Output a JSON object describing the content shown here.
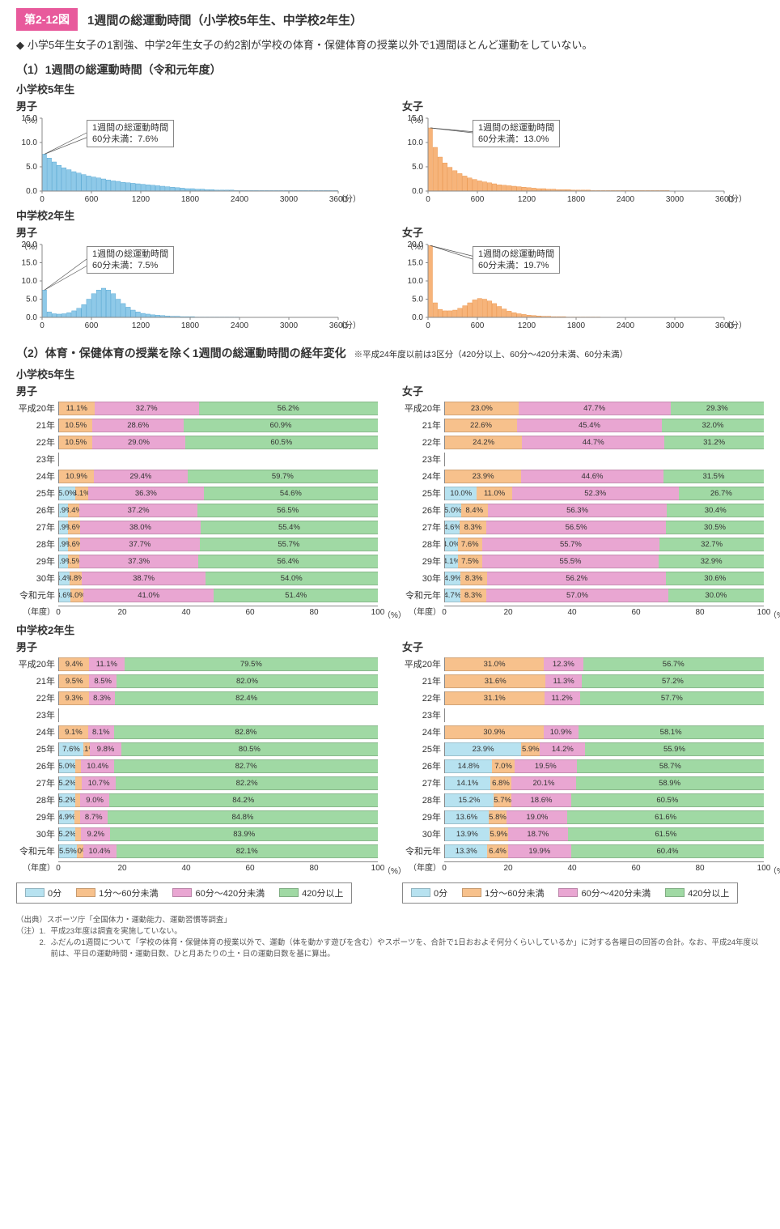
{
  "header": {
    "tag": "第2-12図",
    "title": "1週間の総運動時間（小学校5年生、中学校2年生）"
  },
  "bullet": "小学5年生女子の1割強、中学2年生女子の約2割が学校の体育・保健体育の授業以外で1週間ほとんど運動をしていない。",
  "colors": {
    "boys_bar": "#8ec9e8",
    "boys_bar_stroke": "#4aa0cf",
    "girls_bar": "#f7b47a",
    "girls_bar_stroke": "#e88c3e",
    "seg_0min": "#b7e2f0",
    "seg_1_60": "#f7c18c",
    "seg_60_420": "#e9a6d2",
    "seg_420plus": "#a0d9a4",
    "axis": "#888888"
  },
  "section1": {
    "title": "（1）1週間の総運動時間（令和元年度）",
    "grade_e": "小学校5年生",
    "grade_j": "中学校2年生",
    "boys_label": "男子",
    "girls_label": "女子",
    "y_label": "（%）",
    "x_label": "（分）",
    "x_ticks": [
      0,
      600,
      1200,
      1800,
      2400,
      3000,
      3600
    ],
    "callout_prefix": "1週間の総運動時間",
    "callout_line2_prefix": "60分未満：",
    "histograms": {
      "elem_boys": {
        "y_max": 15,
        "y_ticks": [
          0,
          5,
          10,
          15
        ],
        "callout_pct": "7.6%",
        "bars": [
          7.6,
          6.8,
          6.0,
          5.3,
          4.8,
          4.4,
          4.0,
          3.7,
          3.4,
          3.1,
          2.9,
          2.7,
          2.5,
          2.3,
          2.1,
          2.0,
          1.8,
          1.7,
          1.6,
          1.5,
          1.4,
          1.3,
          1.2,
          1.1,
          1.0,
          0.9,
          0.8,
          0.7,
          0.6,
          0.5,
          0.5,
          0.4,
          0.4,
          0.3,
          0.3,
          0.2,
          0.2,
          0.2,
          0.2,
          0.1,
          0.1,
          0.1,
          0.1,
          0.1,
          0.1,
          0.1,
          0.1,
          0.1,
          0.1,
          0.1,
          0.1,
          0.1,
          0.1,
          0.1,
          0.1,
          0.1,
          0.1,
          0.1,
          0.1,
          0.1
        ]
      },
      "elem_girls": {
        "y_max": 15,
        "y_ticks": [
          0,
          5,
          10,
          15
        ],
        "callout_pct": "13.0%",
        "bars": [
          13.0,
          9.0,
          7.0,
          5.8,
          4.9,
          4.2,
          3.6,
          3.1,
          2.7,
          2.4,
          2.1,
          1.9,
          1.7,
          1.5,
          1.3,
          1.2,
          1.1,
          1.0,
          0.9,
          0.8,
          0.7,
          0.6,
          0.5,
          0.5,
          0.4,
          0.4,
          0.3,
          0.3,
          0.3,
          0.2,
          0.2,
          0.2,
          0.2,
          0.1,
          0.1,
          0.1,
          0.1,
          0.1,
          0.1,
          0.1,
          0.1,
          0.1,
          0.1,
          0.1,
          0.1,
          0.1,
          0.1,
          0.1,
          0.1,
          0.0,
          0.0,
          0.0,
          0.0,
          0.0,
          0.0,
          0.0,
          0.0,
          0.0,
          0.0,
          0.0
        ]
      },
      "jhs_boys": {
        "y_max": 20,
        "y_ticks": [
          0,
          5,
          10,
          15,
          20
        ],
        "callout_pct": "7.5%",
        "bars": [
          7.5,
          1.5,
          1.0,
          0.9,
          1.0,
          1.3,
          1.8,
          2.5,
          3.5,
          5.0,
          6.5,
          7.5,
          8.0,
          7.5,
          6.5,
          5.0,
          3.8,
          2.8,
          2.0,
          1.5,
          1.1,
          0.9,
          0.7,
          0.6,
          0.5,
          0.4,
          0.3,
          0.3,
          0.2,
          0.2,
          0.2,
          0.1,
          0.1,
          0.1,
          0.1,
          0.1,
          0.1,
          0.1,
          0.1,
          0.1,
          0.0,
          0.0,
          0.0,
          0.0,
          0.0,
          0.0,
          0.0,
          0.0,
          0.0,
          0.0,
          0.0,
          0.0,
          0.0,
          0.0,
          0.0,
          0.0,
          0.0,
          0.0,
          0.0,
          0.0
        ]
      },
      "jhs_girls": {
        "y_max": 20,
        "y_ticks": [
          0,
          5,
          10,
          15,
          20
        ],
        "callout_pct": "19.7%",
        "bars": [
          19.7,
          4.0,
          2.2,
          1.8,
          1.8,
          2.0,
          2.5,
          3.2,
          4.0,
          4.8,
          5.2,
          5.0,
          4.5,
          3.8,
          3.0,
          2.3,
          1.7,
          1.3,
          1.0,
          0.8,
          0.6,
          0.5,
          0.4,
          0.3,
          0.3,
          0.2,
          0.2,
          0.2,
          0.1,
          0.1,
          0.1,
          0.1,
          0.1,
          0.1,
          0.1,
          0.0,
          0.0,
          0.0,
          0.0,
          0.0,
          0.0,
          0.0,
          0.0,
          0.0,
          0.0,
          0.0,
          0.0,
          0.0,
          0.0,
          0.0,
          0.0,
          0.0,
          0.0,
          0.0,
          0.0,
          0.0,
          0.0,
          0.0,
          0.0,
          0.0
        ]
      }
    }
  },
  "section2": {
    "title": "（2）体育・保健体育の授業を除く1週間の総運動時間の経年変化",
    "note": "※平成24年度以前は3区分（420分以上、60分～420分未満、60分未満）",
    "grade_e": "小学校5年生",
    "grade_j": "中学校2年生",
    "boys_label": "男子",
    "girls_label": "女子",
    "year_axis_label": "（年度）",
    "x_axis_label": "（%）",
    "x_ticks": [
      0,
      20,
      40,
      60,
      80,
      100
    ],
    "years": [
      "平成20年",
      "21年",
      "22年",
      "23年",
      "24年",
      "25年",
      "26年",
      "27年",
      "28年",
      "29年",
      "30年",
      "令和元年"
    ],
    "legend": {
      "items": [
        {
          "key": "seg_0min",
          "label": "0分"
        },
        {
          "key": "seg_1_60",
          "label": "1分～60分未満"
        },
        {
          "key": "seg_60_420",
          "label": "60分～420分未満"
        },
        {
          "key": "seg_420plus",
          "label": "420分以上"
        }
      ]
    },
    "stacked": {
      "elem_boys": [
        {
          "segs": [
            null,
            11.1,
            32.7,
            56.2
          ]
        },
        {
          "segs": [
            null,
            10.5,
            28.6,
            60.9
          ]
        },
        {
          "segs": [
            null,
            10.5,
            29.0,
            60.5
          ]
        },
        {
          "segs": null
        },
        {
          "segs": [
            null,
            10.9,
            29.4,
            59.7
          ]
        },
        {
          "segs": [
            5.0,
            4.1,
            36.3,
            54.6
          ]
        },
        {
          "segs": [
            2.9,
            3.4,
            37.2,
            56.5
          ]
        },
        {
          "segs": [
            2.9,
            3.6,
            38.0,
            55.4
          ]
        },
        {
          "segs": [
            2.9,
            3.6,
            37.7,
            55.7
          ]
        },
        {
          "segs": [
            2.9,
            3.5,
            37.3,
            56.4
          ]
        },
        {
          "segs": [
            3.4,
            3.8,
            38.7,
            54.0
          ]
        },
        {
          "segs": [
            3.6,
            4.0,
            41.0,
            51.4
          ]
        }
      ],
      "elem_girls": [
        {
          "segs": [
            null,
            23.0,
            47.7,
            29.3
          ]
        },
        {
          "segs": [
            null,
            22.6,
            45.4,
            32.0
          ]
        },
        {
          "segs": [
            null,
            24.2,
            44.7,
            31.2
          ]
        },
        {
          "segs": null
        },
        {
          "segs": [
            null,
            23.9,
            44.6,
            31.5
          ]
        },
        {
          "segs": [
            10.0,
            11.0,
            52.3,
            26.7
          ]
        },
        {
          "segs": [
            5.0,
            8.4,
            56.3,
            30.4
          ]
        },
        {
          "segs": [
            4.6,
            8.3,
            56.5,
            30.5
          ]
        },
        {
          "segs": [
            4.0,
            7.6,
            55.7,
            32.7
          ]
        },
        {
          "segs": [
            4.1,
            7.5,
            55.5,
            32.9
          ]
        },
        {
          "segs": [
            4.9,
            8.3,
            56.2,
            30.6
          ]
        },
        {
          "segs": [
            4.7,
            8.3,
            57.0,
            30.0
          ]
        }
      ],
      "jhs_boys": [
        {
          "segs": [
            null,
            9.4,
            11.1,
            79.5
          ]
        },
        {
          "segs": [
            null,
            9.5,
            8.5,
            82.0
          ]
        },
        {
          "segs": [
            null,
            9.3,
            8.3,
            82.4
          ]
        },
        {
          "segs": null
        },
        {
          "segs": [
            null,
            9.1,
            8.1,
            82.8
          ]
        },
        {
          "segs": [
            7.6,
            2.1,
            9.8,
            80.5
          ]
        },
        {
          "segs": [
            5.0,
            1.9,
            10.4,
            82.7
          ]
        },
        {
          "segs": [
            5.2,
            1.9,
            10.7,
            82.2
          ]
        },
        {
          "segs": [
            5.2,
            1.5,
            9.0,
            84.2
          ]
        },
        {
          "segs": [
            4.9,
            1.6,
            8.7,
            84.8
          ]
        },
        {
          "segs": [
            5.2,
            1.7,
            9.2,
            83.9
          ]
        },
        {
          "segs": [
            5.5,
            2.0,
            10.4,
            82.1
          ]
        }
      ],
      "jhs_girls": [
        {
          "segs": [
            null,
            31.0,
            12.3,
            56.7
          ]
        },
        {
          "segs": [
            null,
            31.6,
            11.3,
            57.2
          ]
        },
        {
          "segs": [
            null,
            31.1,
            11.2,
            57.7
          ]
        },
        {
          "segs": null
        },
        {
          "segs": [
            null,
            30.9,
            10.9,
            58.1
          ]
        },
        {
          "segs": [
            23.9,
            5.9,
            14.2,
            55.9
          ]
        },
        {
          "segs": [
            14.8,
            7.0,
            19.5,
            58.7
          ]
        },
        {
          "segs": [
            14.1,
            6.8,
            20.1,
            58.9
          ]
        },
        {
          "segs": [
            15.2,
            5.7,
            18.6,
            60.5
          ]
        },
        {
          "segs": [
            13.6,
            5.8,
            19.0,
            61.6
          ]
        },
        {
          "segs": [
            13.9,
            5.9,
            18.7,
            61.5
          ]
        },
        {
          "segs": [
            13.3,
            6.4,
            19.9,
            60.4
          ]
        }
      ]
    }
  },
  "footnotes": {
    "source_head": "（出典）",
    "source": "スポーツ庁「全国体力・運動能力、運動習慣等調査」",
    "note_head": "（注）",
    "note1_num": "1.",
    "note1": "平成23年度は調査を実施していない。",
    "note2_num": "2.",
    "note2": "ふだんの1週間について「学校の体育・保健体育の授業以外で、運動（体を動かす遊びを含む）やスポーツを、合計で1日おおよそ何分くらいしているか」に対する各曜日の回答の合計。なお、平成24年度以前は、平日の運動時間・運動日数、ひと月あたりの土・日の運動日数を基に算出。"
  }
}
